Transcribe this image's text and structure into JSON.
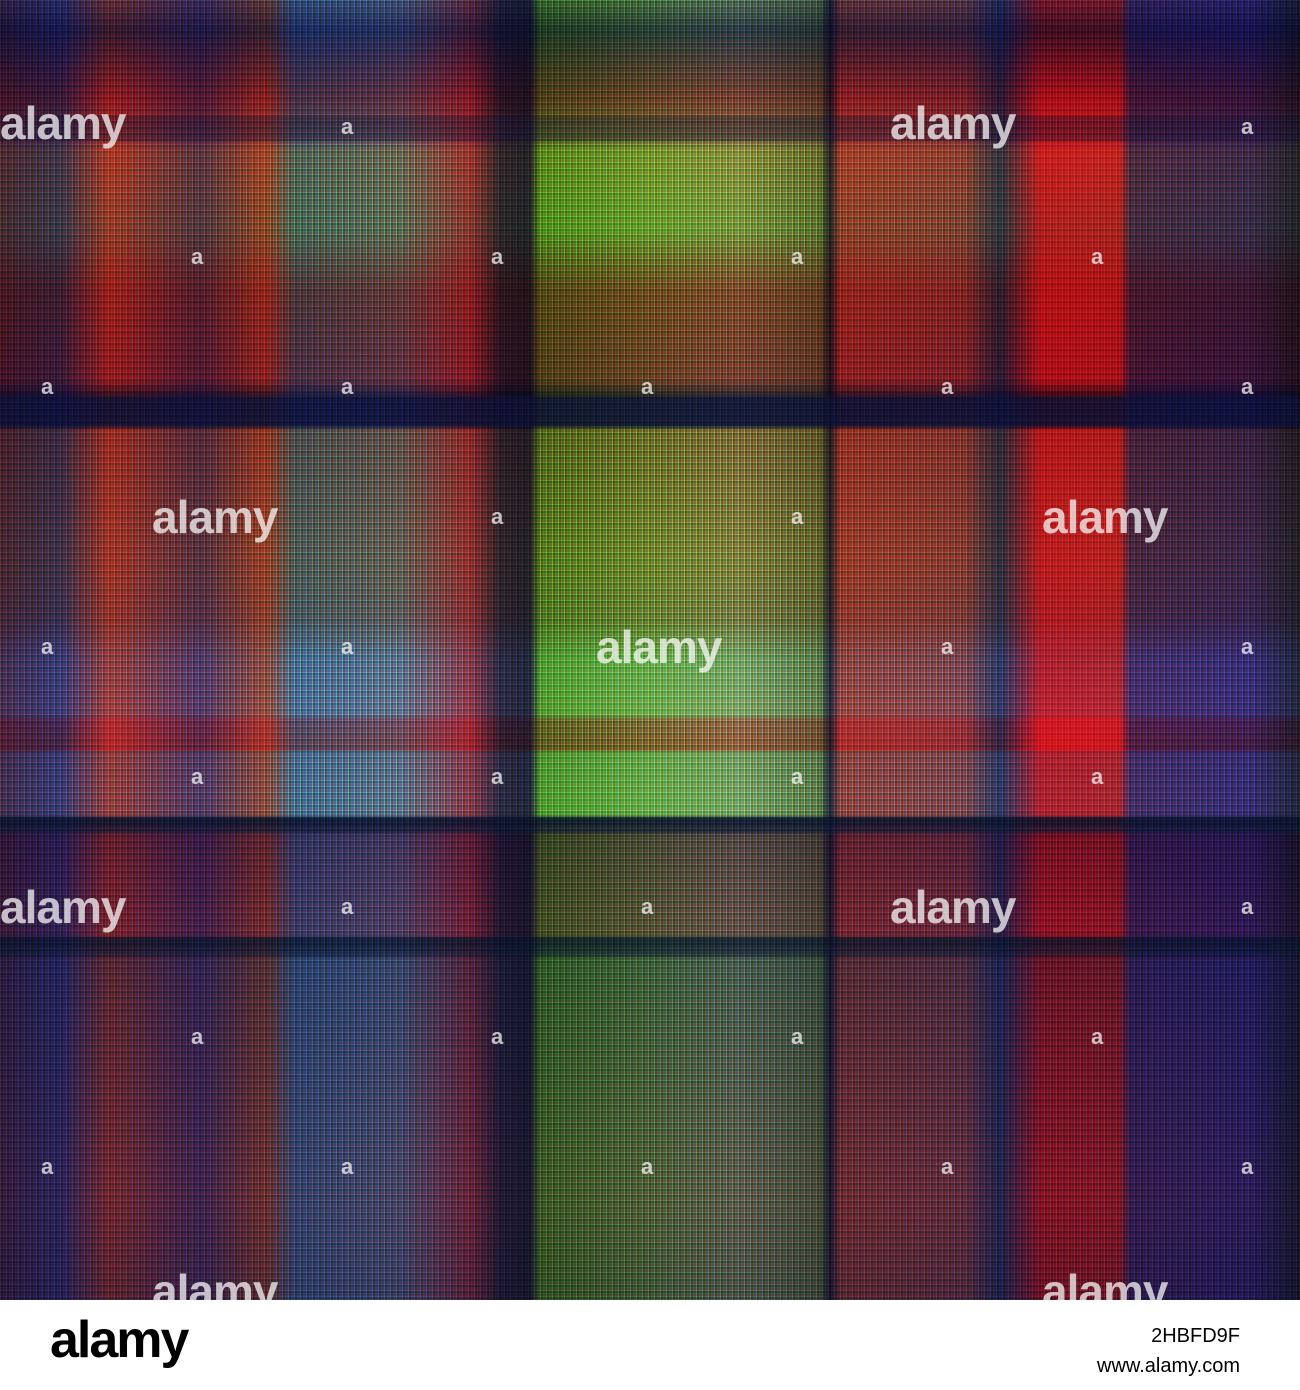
{
  "image": {
    "subject": "seamless-plaid-texture",
    "palette": [
      "#6ab83a",
      "#e02a3a",
      "#4a4a8a",
      "#c8e8f0",
      "#2a3048",
      "#b8604a"
    ]
  },
  "watermark": {
    "text": "alamy",
    "mark": "a"
  },
  "footer": {
    "logo_text": "alamy",
    "image_id": "2HBFD9F",
    "site_url": "www.alamy.com"
  }
}
